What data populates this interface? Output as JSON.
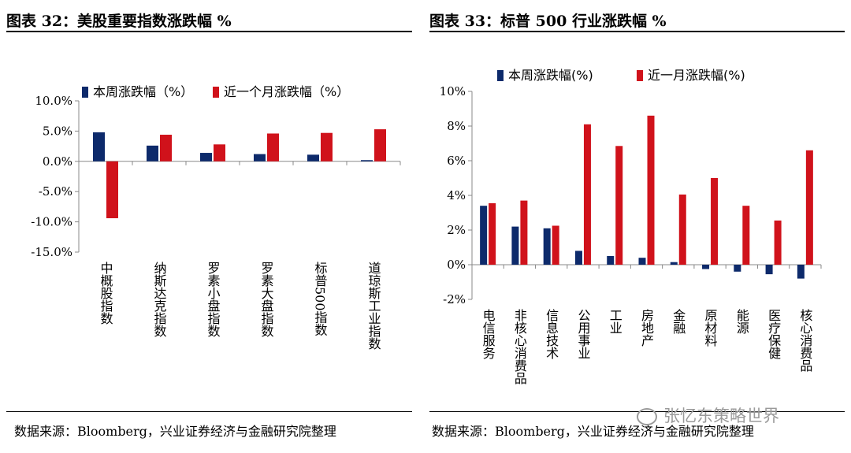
{
  "left_panel": {
    "title": "图表 32：美股重要指数涨跌幅 %",
    "source": "数据来源：Bloomberg，兴业证券经济与金融研究院整理"
  },
  "right_panel": {
    "title": "图表 33：标普 500 行业涨跌幅 %",
    "source": "数据来源：Bloomberg，兴业证券经济与金融研究院整理"
  },
  "watermark": "张忆东策略世界",
  "colors": {
    "week": "#0d2a6b",
    "month": "#d0121b"
  },
  "chart_data": [
    {
      "type": "bar",
      "categories": [
        "中概股指数",
        "纳斯达克指数",
        "罗素小盘指数",
        "罗素大盘指数",
        "标普500指数",
        "道琼斯工业指数"
      ],
      "series": [
        {
          "name": "本周涨跌幅（%）",
          "values": [
            4.8,
            2.6,
            1.4,
            1.2,
            1.1,
            0.2
          ]
        },
        {
          "name": "近一个月涨跌幅（%）",
          "values": [
            -9.4,
            4.4,
            2.8,
            4.6,
            4.7,
            5.3
          ]
        }
      ],
      "ylim": [
        -15,
        10
      ],
      "yticks": [
        10,
        5,
        0,
        -5,
        -10,
        -15
      ],
      "ytick_labels": [
        "10.0%",
        "5.0%",
        "0.0%",
        "-5.0%",
        "-10.0%",
        "-15.0%"
      ],
      "legend": "top",
      "grid": false
    },
    {
      "type": "bar",
      "categories": [
        "电信服务",
        "非核心消费品",
        "信息技术",
        "公用事业",
        "工业",
        "房地产",
        "金融",
        "原材料",
        "能源",
        "医疗保健",
        "核心消费品"
      ],
      "series": [
        {
          "name": "本周涨跌幅(%)",
          "values": [
            3.4,
            2.2,
            2.1,
            0.8,
            0.5,
            0.4,
            0.15,
            -0.25,
            -0.4,
            -0.55,
            -0.8
          ]
        },
        {
          "name": "近一月涨跌幅(%)",
          "values": [
            3.55,
            3.7,
            2.25,
            8.1,
            6.85,
            8.6,
            4.05,
            5.0,
            3.4,
            2.55,
            6.6
          ]
        }
      ],
      "ylim": [
        -2,
        10
      ],
      "yticks": [
        10,
        8,
        6,
        4,
        2,
        0,
        -2
      ],
      "ytick_labels": [
        "10%",
        "8%",
        "6%",
        "4%",
        "2%",
        "0%",
        "-2%"
      ],
      "legend": "top",
      "grid": false
    }
  ]
}
